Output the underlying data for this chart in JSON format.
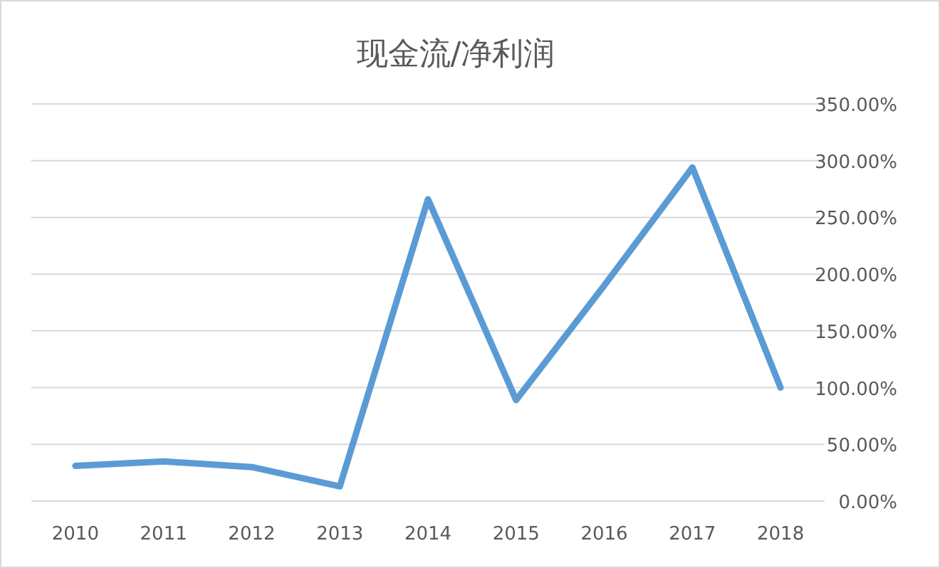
{
  "chart_data": {
    "type": "line",
    "title": "现金流/净利润",
    "categories": [
      "2010",
      "2011",
      "2012",
      "2013",
      "2014",
      "2015",
      "2016",
      "2017",
      "2018"
    ],
    "series": [
      {
        "color": "#5b9bd5",
        "values": [
          31,
          35,
          30,
          13,
          266,
          89,
          190,
          294,
          100
        ]
      }
    ],
    "ylim": [
      0,
      350
    ],
    "yticks": [
      {
        "value": 0,
        "label": "0.00%"
      },
      {
        "value": 50,
        "label": "50.00%"
      },
      {
        "value": 100,
        "label": "100.00%"
      },
      {
        "value": 150,
        "label": "150.00%"
      },
      {
        "value": 200,
        "label": "200.00%"
      },
      {
        "value": 250,
        "label": "250.00%"
      },
      {
        "value": 300,
        "label": "300.00%"
      },
      {
        "value": 350,
        "label": "350.00%"
      }
    ],
    "grid": "y",
    "marker": "none",
    "line_style": "solid"
  }
}
